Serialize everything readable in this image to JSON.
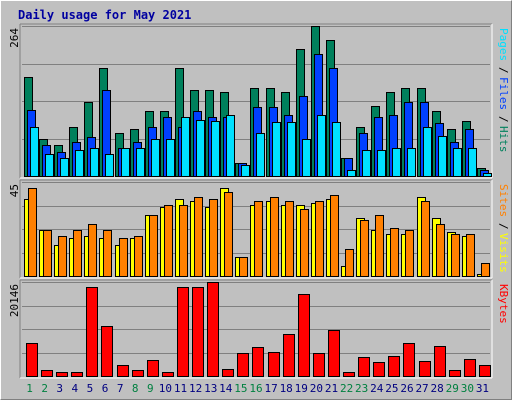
{
  "title": "Daily usage for May 2021",
  "colors": {
    "hits": "#00805c",
    "files": "#0040ff",
    "pages": "#00e0ff",
    "visits": "#ffff00",
    "sites": "#ff8000",
    "kbytes": "#ff0000",
    "grid": "#808080",
    "weekday_label": "#008040",
    "weekend_label": "#008040"
  },
  "chart_data": [
    {
      "type": "bar",
      "panel": "top",
      "ymax_label": "264",
      "ylim": [
        0,
        264
      ],
      "series_labels": [
        "Pages",
        "Files",
        "Hits"
      ],
      "x": [
        "1",
        "2",
        "3",
        "4",
        "5",
        "6",
        "7",
        "8",
        "9",
        "10",
        "11",
        "12",
        "13",
        "14",
        "15",
        "16",
        "17",
        "18",
        "19",
        "20",
        "21",
        "22",
        "23",
        "24",
        "25",
        "26",
        "27",
        "28",
        "29",
        "30",
        "31"
      ],
      "series": [
        {
          "name": "Hits",
          "values": [
            175,
            65,
            55,
            87,
            130,
            190,
            75,
            82,
            114,
            114,
            190,
            152,
            152,
            147,
            22,
            155,
            155,
            147,
            224,
            264,
            239,
            32,
            87,
            124,
            147,
            155,
            155,
            114,
            82,
            97,
            14
          ]
        },
        {
          "name": "Files",
          "values": [
            117,
            54,
            43,
            59,
            68,
            152,
            49,
            59,
            87,
            103,
            87,
            114,
            103,
            103,
            22,
            122,
            122,
            108,
            141,
            215,
            190,
            32,
            75,
            103,
            108,
            130,
            130,
            94,
            59,
            82,
            10
          ]
        },
        {
          "name": "Pages",
          "values": [
            87,
            38,
            32,
            46,
            49,
            38,
            49,
            49,
            65,
            65,
            103,
            98,
            97,
            108,
            19,
            76,
            95,
            95,
            65,
            108,
            95,
            11,
            46,
            46,
            49,
            49,
            87,
            70,
            49,
            49,
            5
          ]
        }
      ]
    },
    {
      "type": "bar",
      "panel": "middle",
      "ymax_label": "45",
      "ylim": [
        0,
        45
      ],
      "series_labels": [
        "Sites",
        "Visits"
      ],
      "x": [
        "1",
        "2",
        "3",
        "4",
        "5",
        "6",
        "7",
        "8",
        "9",
        "10",
        "11",
        "12",
        "13",
        "14",
        "15",
        "16",
        "17",
        "18",
        "19",
        "20",
        "21",
        "22",
        "23",
        "24",
        "25",
        "26",
        "27",
        "28",
        "29",
        "30",
        "31"
      ],
      "series": [
        {
          "name": "Visits",
          "values": [
            37,
            22,
            15,
            18,
            19,
            18,
            15,
            18,
            29,
            33,
            37,
            36,
            33,
            42,
            9,
            34,
            36,
            34,
            34,
            35,
            37,
            5,
            28,
            22,
            20,
            20,
            38,
            28,
            21,
            19,
            1
          ]
        },
        {
          "name": "Sites",
          "values": [
            42,
            22,
            19,
            22,
            25,
            22,
            18,
            19,
            29,
            34,
            34,
            38,
            37,
            40,
            9,
            36,
            38,
            36,
            32,
            36,
            39,
            13,
            27,
            29,
            23,
            22,
            36,
            25,
            20,
            20,
            6
          ]
        }
      ]
    },
    {
      "type": "bar",
      "panel": "bottom",
      "ymax_label": "20146",
      "ylim": [
        0,
        20146
      ],
      "series_labels": [
        "KBytes"
      ],
      "x": [
        "1",
        "2",
        "3",
        "4",
        "5",
        "6",
        "7",
        "8",
        "9",
        "10",
        "11",
        "12",
        "13",
        "14",
        "15",
        "16",
        "17",
        "18",
        "19",
        "20",
        "21",
        "22",
        "23",
        "24",
        "25",
        "26",
        "27",
        "28",
        "29",
        "30",
        "31"
      ],
      "series": [
        {
          "name": "KBytes",
          "values": [
            7000,
            1200,
            800,
            800,
            19000,
            10800,
            2400,
            1300,
            3500,
            800,
            19000,
            19000,
            20146,
            1500,
            5000,
            6300,
            5200,
            9000,
            17500,
            5000,
            9800,
            900,
            4100,
            3000,
            4200,
            7000,
            3300,
            6400,
            1200,
            3600,
            2400
          ]
        }
      ],
      "day_labels": [
        "1",
        "2",
        "3",
        "4",
        "5",
        "6",
        "7",
        "8",
        "9",
        "10",
        "11",
        "12",
        "13",
        "14",
        "15",
        "16",
        "17",
        "18",
        "19",
        "20",
        "21",
        "22",
        "23",
        "24",
        "25",
        "26",
        "27",
        "28",
        "29",
        "30",
        "31"
      ]
    }
  ]
}
